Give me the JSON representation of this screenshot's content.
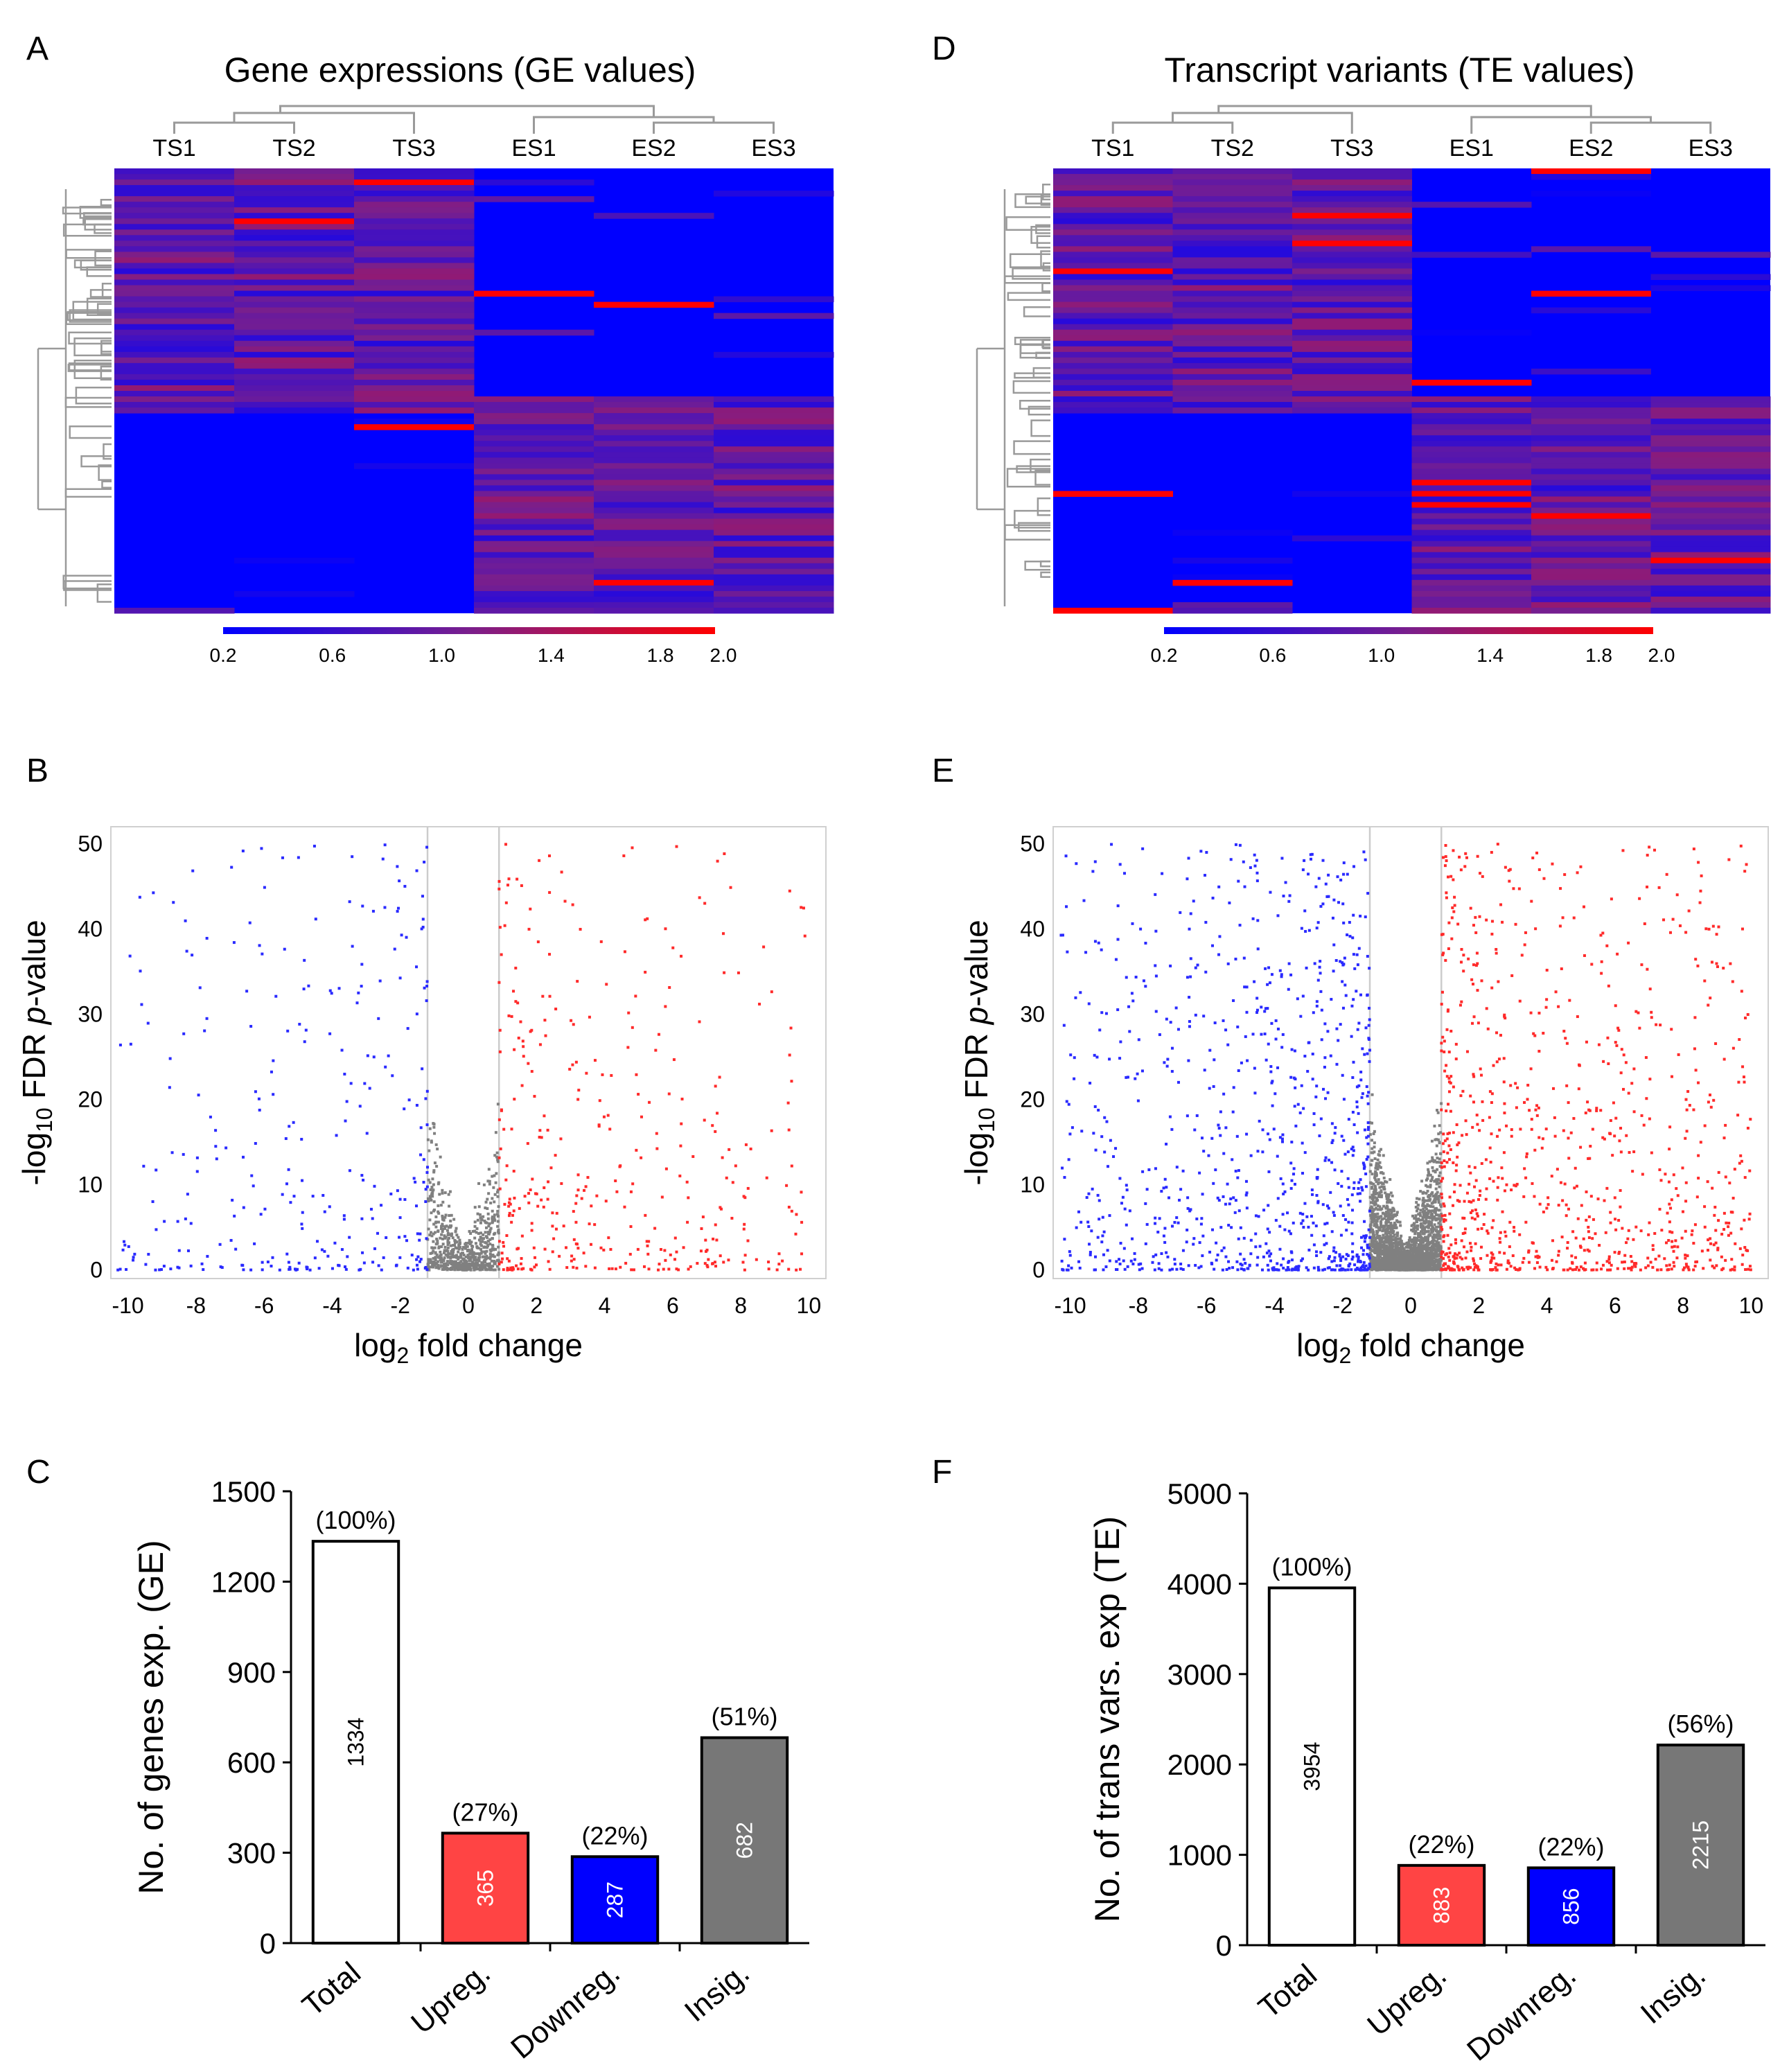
{
  "colors": {
    "heat_low": "#0000ff",
    "heat_mid": "#7a1f8c",
    "heat_high": "#ff0000",
    "up": "#ff2a2a",
    "down": "#2a2aff",
    "insig": "#808080",
    "bar_total": "#ffffff",
    "bar_up": "#ff4444",
    "bar_down": "#0000ff",
    "bar_insig": "#777777"
  },
  "chart_data": [
    {
      "panel": "A",
      "type": "heatmap",
      "title": "Gene expressions (GE values)",
      "columns": [
        "TS1",
        "TS2",
        "TS3",
        "ES1",
        "ES2",
        "ES3"
      ],
      "colorbar_ticks": [
        "0.2",
        "0.6",
        "1.0",
        "1.4",
        "1.8",
        "2.0"
      ],
      "colorbar_range": [
        0.2,
        2.0
      ],
      "seed": 11
    },
    {
      "panel": "D",
      "type": "heatmap",
      "title": "Transcript variants (TE values)",
      "columns": [
        "TS1",
        "TS2",
        "TS3",
        "ES1",
        "ES2",
        "ES3"
      ],
      "colorbar_ticks": [
        "0.2",
        "0.6",
        "1.0",
        "1.4",
        "1.8",
        "2.0"
      ],
      "colorbar_range": [
        0.2,
        2.0
      ],
      "seed": 29
    },
    {
      "panel": "B",
      "type": "scatter",
      "xlabel_main": "log",
      "xlabel_sub": "2",
      "xlabel_rest": " fold change",
      "ylabel_main": "-log",
      "ylabel_sub": "10",
      "ylabel_mid": " FDR ",
      "ylabel_italic": "p",
      "ylabel_rest": "-value",
      "xticks": [
        "-10",
        "-8",
        "-6",
        "-4",
        "-2",
        "0",
        "2",
        "4",
        "6",
        "8",
        "10"
      ],
      "yticks": [
        "0",
        "10",
        "20",
        "30",
        "40",
        "50"
      ],
      "xlim": [
        -10.5,
        10.5
      ],
      "ylim": [
        -1,
        52
      ],
      "thresholds": [
        -1.2,
        0.9
      ],
      "counts": {
        "up": 365,
        "down": 287,
        "insig": 682
      },
      "seed": 5
    },
    {
      "panel": "E",
      "type": "scatter",
      "xlabel_main": "log",
      "xlabel_sub": "2",
      "xlabel_rest": " fold change",
      "ylabel_main": "-log",
      "ylabel_sub": "10",
      "ylabel_mid": " FDR ",
      "ylabel_italic": "p",
      "ylabel_rest": "-value",
      "xticks": [
        "-10",
        "-8",
        "-6",
        "-4",
        "-2",
        "0",
        "2",
        "4",
        "6",
        "8",
        "10"
      ],
      "yticks": [
        "0",
        "10",
        "20",
        "30",
        "40",
        "50"
      ],
      "xlim": [
        -10.5,
        10.5
      ],
      "ylim": [
        -1,
        52
      ],
      "thresholds": [
        -1.2,
        0.9
      ],
      "counts": {
        "up": 883,
        "down": 856,
        "insig": 2215
      },
      "seed": 17
    },
    {
      "panel": "C",
      "type": "bar",
      "ylabel": "No. of genes exp. (GE)",
      "categories": [
        "Total",
        "Upreg.",
        "Downreg.",
        "Insig."
      ],
      "values": [
        1334,
        365,
        287,
        682
      ],
      "percent_labels": [
        "(100%)",
        "(27%)",
        "(22%)",
        "(51%)"
      ],
      "value_labels": [
        "1334",
        "365",
        "287",
        "682"
      ],
      "yticks": [
        "0",
        "300",
        "600",
        "900",
        "1200",
        "1500"
      ],
      "ylim": [
        0,
        1500
      ]
    },
    {
      "panel": "F",
      "type": "bar",
      "ylabel": "No. of trans vars. exp (TE)",
      "categories": [
        "Total",
        "Upreg.",
        "Downreg.",
        "Insig."
      ],
      "values": [
        3954,
        883,
        856,
        2215
      ],
      "percent_labels": [
        "(100%)",
        "(22%)",
        "(22%)",
        "(56%)"
      ],
      "value_labels": [
        "3954",
        "883",
        "856",
        "2215"
      ],
      "yticks": [
        "0",
        "1000",
        "2000",
        "3000",
        "4000",
        "5000"
      ],
      "ylim": [
        0,
        5000
      ]
    }
  ]
}
